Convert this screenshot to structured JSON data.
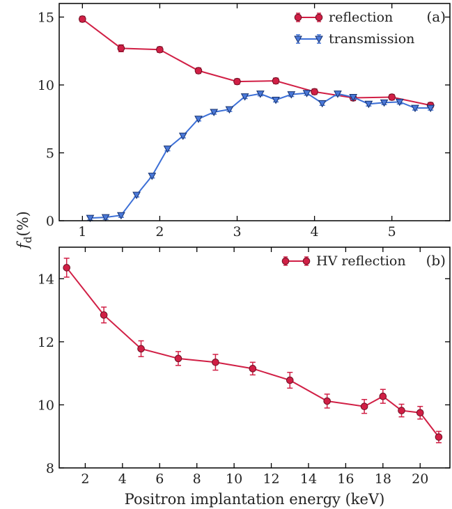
{
  "colors": {
    "reflection": "#d11f45",
    "reflection_edge": "#6b0f23",
    "transmission": "#3c6fd6",
    "transmission_fill": "#4a78d8",
    "transmission_edge": "#14306e",
    "axis": "#000000"
  },
  "chart_data": [
    {
      "panel": "a",
      "panel_label": "(a)",
      "type": "line",
      "xlim": [
        0.7,
        5.75
      ],
      "ylim": [
        0,
        16
      ],
      "xticks": [
        1,
        2,
        3,
        4,
        5
      ],
      "yticks": [
        0,
        5,
        10,
        15
      ],
      "xlabel": "",
      "ylabel": "f_d(%)",
      "legend_position": "top-right",
      "series": [
        {
          "name": "reflection",
          "marker": "circle",
          "x": [
            1.0,
            1.5,
            2.0,
            2.5,
            3.0,
            3.5,
            4.0,
            4.5,
            5.0,
            5.5
          ],
          "y": [
            14.85,
            12.7,
            12.6,
            11.05,
            10.25,
            10.3,
            9.5,
            9.05,
            9.1,
            8.5
          ],
          "err": [
            0.2,
            0.25,
            0.2,
            0.2,
            0.2,
            0.2,
            0.2,
            0.2,
            0.2,
            0.2
          ]
        },
        {
          "name": "transmission",
          "marker": "triangle-down",
          "x": [
            1.1,
            1.3,
            1.5,
            1.7,
            1.9,
            2.1,
            2.3,
            2.5,
            2.7,
            2.9,
            3.1,
            3.3,
            3.5,
            3.7,
            3.9,
            4.1,
            4.3,
            4.5,
            4.7,
            4.9,
            5.1,
            5.3,
            5.5
          ],
          "y": [
            0.2,
            0.25,
            0.4,
            1.9,
            3.3,
            5.3,
            6.25,
            7.5,
            8.0,
            8.2,
            9.15,
            9.35,
            8.9,
            9.3,
            9.4,
            8.65,
            9.35,
            9.1,
            8.6,
            8.7,
            8.75,
            8.3,
            8.3
          ],
          "err": [
            0.15,
            0.15,
            0.15,
            0.15,
            0.15,
            0.15,
            0.15,
            0.15,
            0.15,
            0.15,
            0.15,
            0.15,
            0.15,
            0.15,
            0.15,
            0.15,
            0.15,
            0.15,
            0.15,
            0.15,
            0.15,
            0.15,
            0.15
          ]
        }
      ]
    },
    {
      "panel": "b",
      "panel_label": "(b)",
      "type": "line",
      "xlim": [
        0.6,
        21.6
      ],
      "ylim": [
        8,
        15
      ],
      "xticks": [
        2,
        4,
        6,
        8,
        10,
        12,
        14,
        16,
        18,
        20
      ],
      "yticks": [
        8,
        10,
        12,
        14
      ],
      "xlabel": "Positron implantation energy (keV)",
      "ylabel": "",
      "legend_position": "top-right",
      "series": [
        {
          "name": "HV reflection",
          "marker": "circle",
          "x": [
            1,
            3,
            5,
            7,
            9,
            11,
            13,
            15,
            17,
            18,
            19,
            20,
            21
          ],
          "y": [
            14.35,
            12.85,
            11.78,
            11.47,
            11.35,
            11.15,
            10.78,
            10.12,
            9.95,
            10.27,
            9.82,
            9.75,
            8.98
          ],
          "err": [
            0.3,
            0.25,
            0.25,
            0.22,
            0.25,
            0.2,
            0.25,
            0.22,
            0.22,
            0.22,
            0.2,
            0.2,
            0.18
          ]
        }
      ]
    }
  ]
}
